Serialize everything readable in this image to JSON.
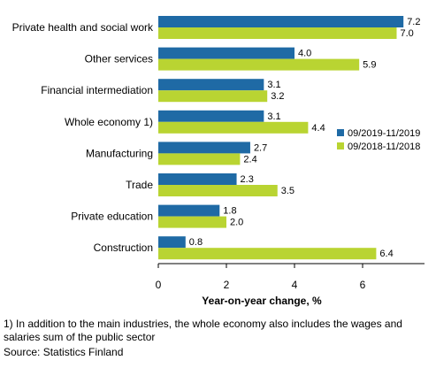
{
  "chart_data": {
    "type": "bar",
    "orientation": "horizontal",
    "categories": [
      "Private health and social work",
      "Other services",
      "Financial intermediation",
      "Whole economy 1)",
      "Manufacturing",
      "Trade",
      "Private education",
      "Construction"
    ],
    "series": [
      {
        "name": "09/2019-11/2019",
        "color": "#1f6aa5",
        "values": [
          7.2,
          4.0,
          3.1,
          3.1,
          2.7,
          2.3,
          1.8,
          0.8
        ],
        "labels": [
          "7.2",
          "4.0",
          "3.1",
          "3.1",
          "2.7",
          "2.3",
          "1.8",
          "0.8"
        ]
      },
      {
        "name": "09/2018-11/2018",
        "color": "#b9d432",
        "values": [
          7.0,
          5.9,
          3.2,
          4.4,
          2.4,
          3.5,
          2.0,
          6.4
        ],
        "labels": [
          "7.0",
          "5.9",
          "3.2",
          "4.4",
          "2.4",
          "3.5",
          "2.0",
          "6.4"
        ]
      }
    ],
    "xlabel": "Year-on-year change, %",
    "xlim": [
      0,
      7.8
    ],
    "xticks": [
      "0",
      "2",
      "4",
      "6"
    ],
    "grid": false,
    "legend_position": "right"
  },
  "footnote": "1) In addition to the main industries, the whole economy also includes the wages and salaries sum of the public sector",
  "source": "Source: Statistics Finland"
}
